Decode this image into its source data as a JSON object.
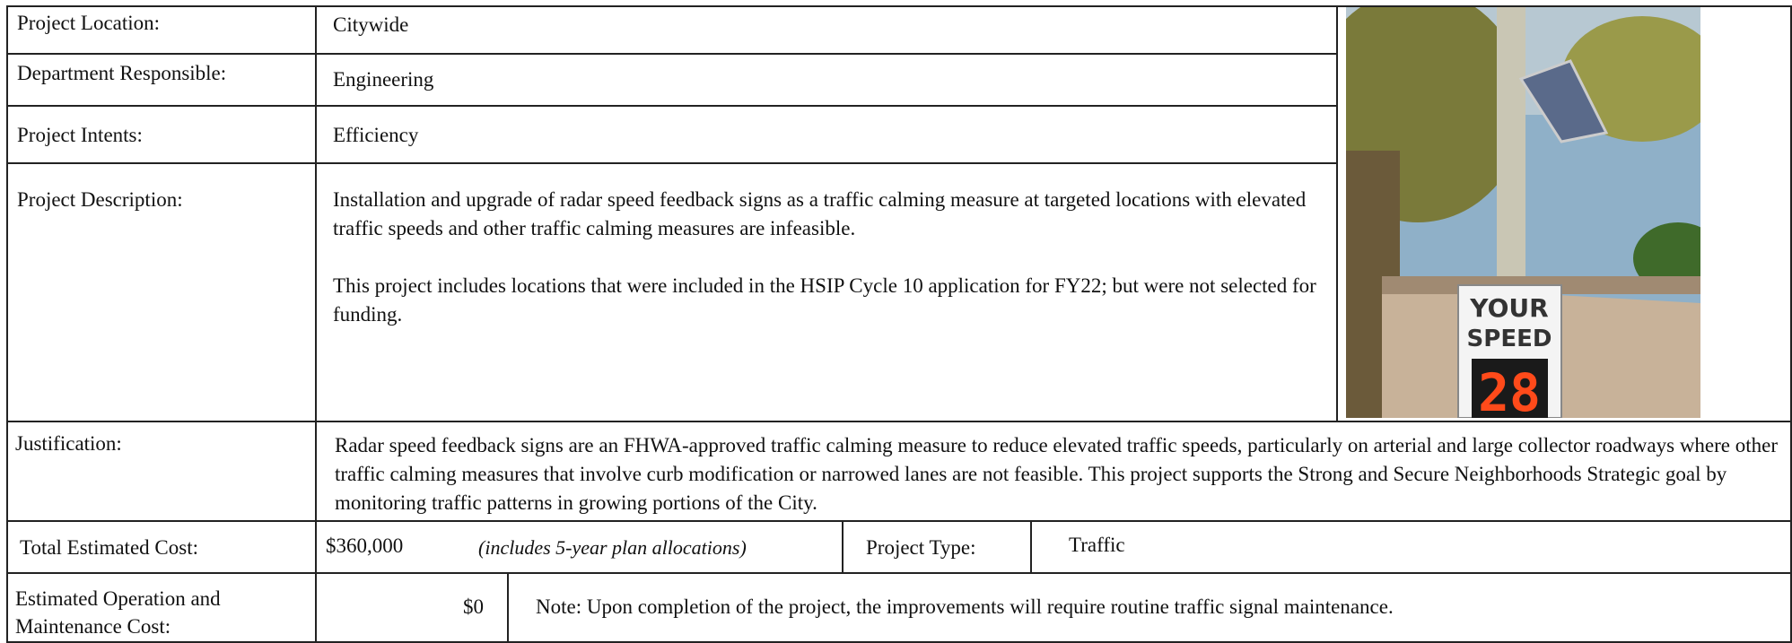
{
  "rows": [
    {
      "label": "Project Location:",
      "value": "Citywide"
    },
    {
      "label": "Department Responsible:",
      "value": "Engineering"
    },
    {
      "label": "Project Intents:",
      "value": "Efficiency"
    },
    {
      "label": "Project Description:",
      "paragraphs": [
        "Installation and upgrade of radar speed feedback signs as a traffic calming measure at targeted locations with elevated traffic speeds and other traffic calming measures are infeasible.",
        "This project includes locations that were included in the HSIP Cycle 10 application for FY22; but were not selected for funding."
      ]
    },
    {
      "label": "Justification:",
      "value": "Radar speed feedback signs are an FHWA-approved traffic calming measure to reduce elevated traffic speeds, particularly on arterial and large collector roadways where other traffic calming measures that involve curb modification or narrowed lanes are not feasible.  This project supports the Strong and Secure Neighborhoods Strategic goal by monitoring traffic patterns in growing portions of the City."
    }
  ],
  "cost": {
    "label": "Total Estimated Cost:",
    "value": "$360,000",
    "note": "(includes 5-year plan allocations)",
    "type_label": "Project Type:",
    "type_value": "Traffic"
  },
  "operation": {
    "label": "Estimated Operation and Maintenance Cost:",
    "value": "$0",
    "note": "Note: Upon completion of the project, the improvements will require routine traffic signal maintenance."
  },
  "photo": {
    "sign_top": "YOUR",
    "sign_middle": "SPEED",
    "sign_number": "28"
  }
}
